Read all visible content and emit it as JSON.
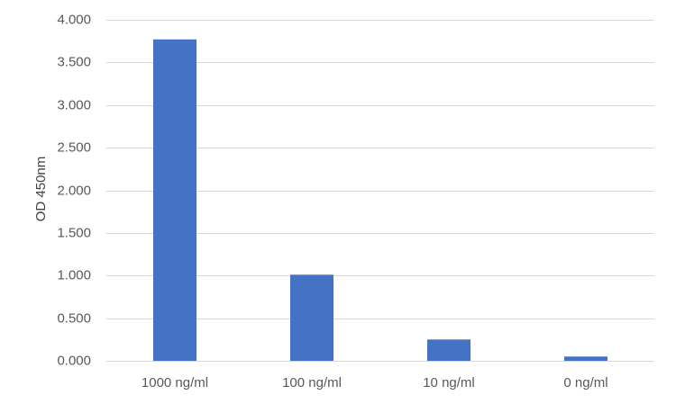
{
  "chart_data": {
    "type": "bar",
    "title": "",
    "xlabel": "",
    "ylabel": "OD 450nm",
    "categories": [
      "1000 ng/ml",
      "100 ng/ml",
      "10 ng/ml",
      "0 ng/ml"
    ],
    "values": [
      3.77,
      1.01,
      0.25,
      0.05
    ],
    "ylim": [
      0,
      4
    ],
    "y_ticks": [
      0,
      0.5,
      1,
      1.5,
      2,
      2.5,
      3,
      3.5,
      4
    ],
    "y_tick_labels": [
      "0.000",
      "0.500",
      "1.000",
      "1.500",
      "2.000",
      "2.500",
      "3.000",
      "3.500",
      "4.000"
    ],
    "grid": true,
    "legend": "none",
    "colors": {
      "bar": "#4472C4",
      "grid": "#D9D9D9",
      "tick_text": "#595959",
      "axis_text": "#404040"
    }
  }
}
